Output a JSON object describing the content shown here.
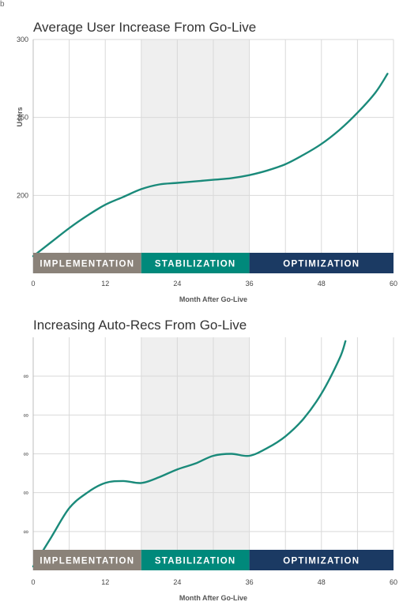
{
  "corner_mark": "b",
  "chart_data": [
    {
      "type": "line",
      "title": "Average User Increase From Go-Live",
      "xlabel": "Month After Go-Live",
      "ylabel": "Users",
      "xlim": [
        0,
        60
      ],
      "ylim": [
        150,
        300
      ],
      "x_ticks": [
        0,
        12,
        24,
        36,
        48,
        60
      ],
      "x_tick_labels": [
        "0",
        "12",
        "24",
        "36",
        "48",
        "60"
      ],
      "y_ticks": [
        200,
        250,
        300
      ],
      "y_tick_labels": [
        "200",
        "250",
        "300"
      ],
      "grid": true,
      "line_color": "#1a8a7a",
      "shaded_region": [
        18,
        36
      ],
      "phases": [
        {
          "label": "IMPLEMENTATION",
          "start": 0,
          "end": 18,
          "color": "#8a8279"
        },
        {
          "label": "STABILIZATION",
          "start": 18,
          "end": 36,
          "color": "#00897b"
        },
        {
          "label": "OPTIMIZATION",
          "start": 36,
          "end": 60,
          "color": "#1b3a63"
        }
      ],
      "series": [
        {
          "x": [
            0,
            3,
            6,
            9,
            12,
            15,
            18,
            21,
            24,
            27,
            30,
            33,
            36,
            39,
            42,
            45,
            48,
            51,
            54,
            57,
            59
          ],
          "y": [
            161,
            170,
            179,
            187,
            194,
            199,
            204,
            207,
            208,
            209,
            210,
            211,
            213,
            216,
            220,
            226,
            233,
            242,
            253,
            266,
            278
          ]
        }
      ]
    },
    {
      "type": "line",
      "title": "Increasing Auto-Recs From Go-Live",
      "xlabel": "Month After Go-Live",
      "ylabel": "",
      "xlim": [
        0,
        60
      ],
      "ylim": [
        0,
        6
      ],
      "x_ticks": [
        0,
        12,
        24,
        36,
        48,
        60
      ],
      "x_tick_labels": [
        "0",
        "12",
        "24",
        "36",
        "48",
        "60"
      ],
      "y_ticks": [
        1,
        2,
        3,
        4,
        5
      ],
      "y_tick_labels": [
        "∞",
        "∞",
        "∞",
        "∞",
        "∞"
      ],
      "grid": true,
      "line_color": "#1a8a7a",
      "shaded_region": [
        18,
        36
      ],
      "phases": [
        {
          "label": "IMPLEMENTATION",
          "start": 0,
          "end": 18,
          "color": "#8a8279"
        },
        {
          "label": "STABILIZATION",
          "start": 18,
          "end": 36,
          "color": "#00897b"
        },
        {
          "label": "OPTIMIZATION",
          "start": 36,
          "end": 60,
          "color": "#1b3a63"
        }
      ],
      "series": [
        {
          "x": [
            0,
            3,
            6,
            9,
            12,
            15,
            18,
            21,
            24,
            27,
            30,
            33,
            36,
            39,
            42,
            45,
            48,
            51,
            52
          ],
          "y": [
            0.1,
            0.85,
            1.6,
            2.0,
            2.25,
            2.3,
            2.25,
            2.4,
            2.6,
            2.75,
            2.95,
            3.0,
            2.95,
            3.15,
            3.45,
            3.9,
            4.55,
            5.45,
            5.9
          ]
        }
      ]
    }
  ]
}
